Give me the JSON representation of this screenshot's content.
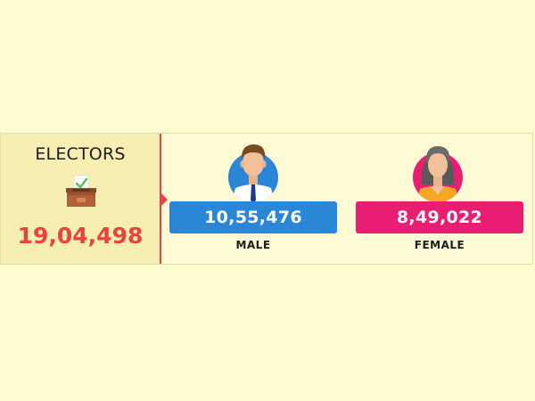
{
  "electors": {
    "title": "ELECTORS",
    "total": "19,04,498",
    "icon": "ballot-box-icon"
  },
  "male": {
    "value": "10,55,476",
    "label": "MALE",
    "icon": "male-avatar-icon",
    "color": "#2a86d6"
  },
  "female": {
    "value": "8,49,022",
    "label": "FEMALE",
    "icon": "female-avatar-icon",
    "color": "#e91e73"
  },
  "colors": {
    "background": "#fffbd0",
    "left_panel": "#f7eeb4",
    "accent": "#e8434a"
  }
}
